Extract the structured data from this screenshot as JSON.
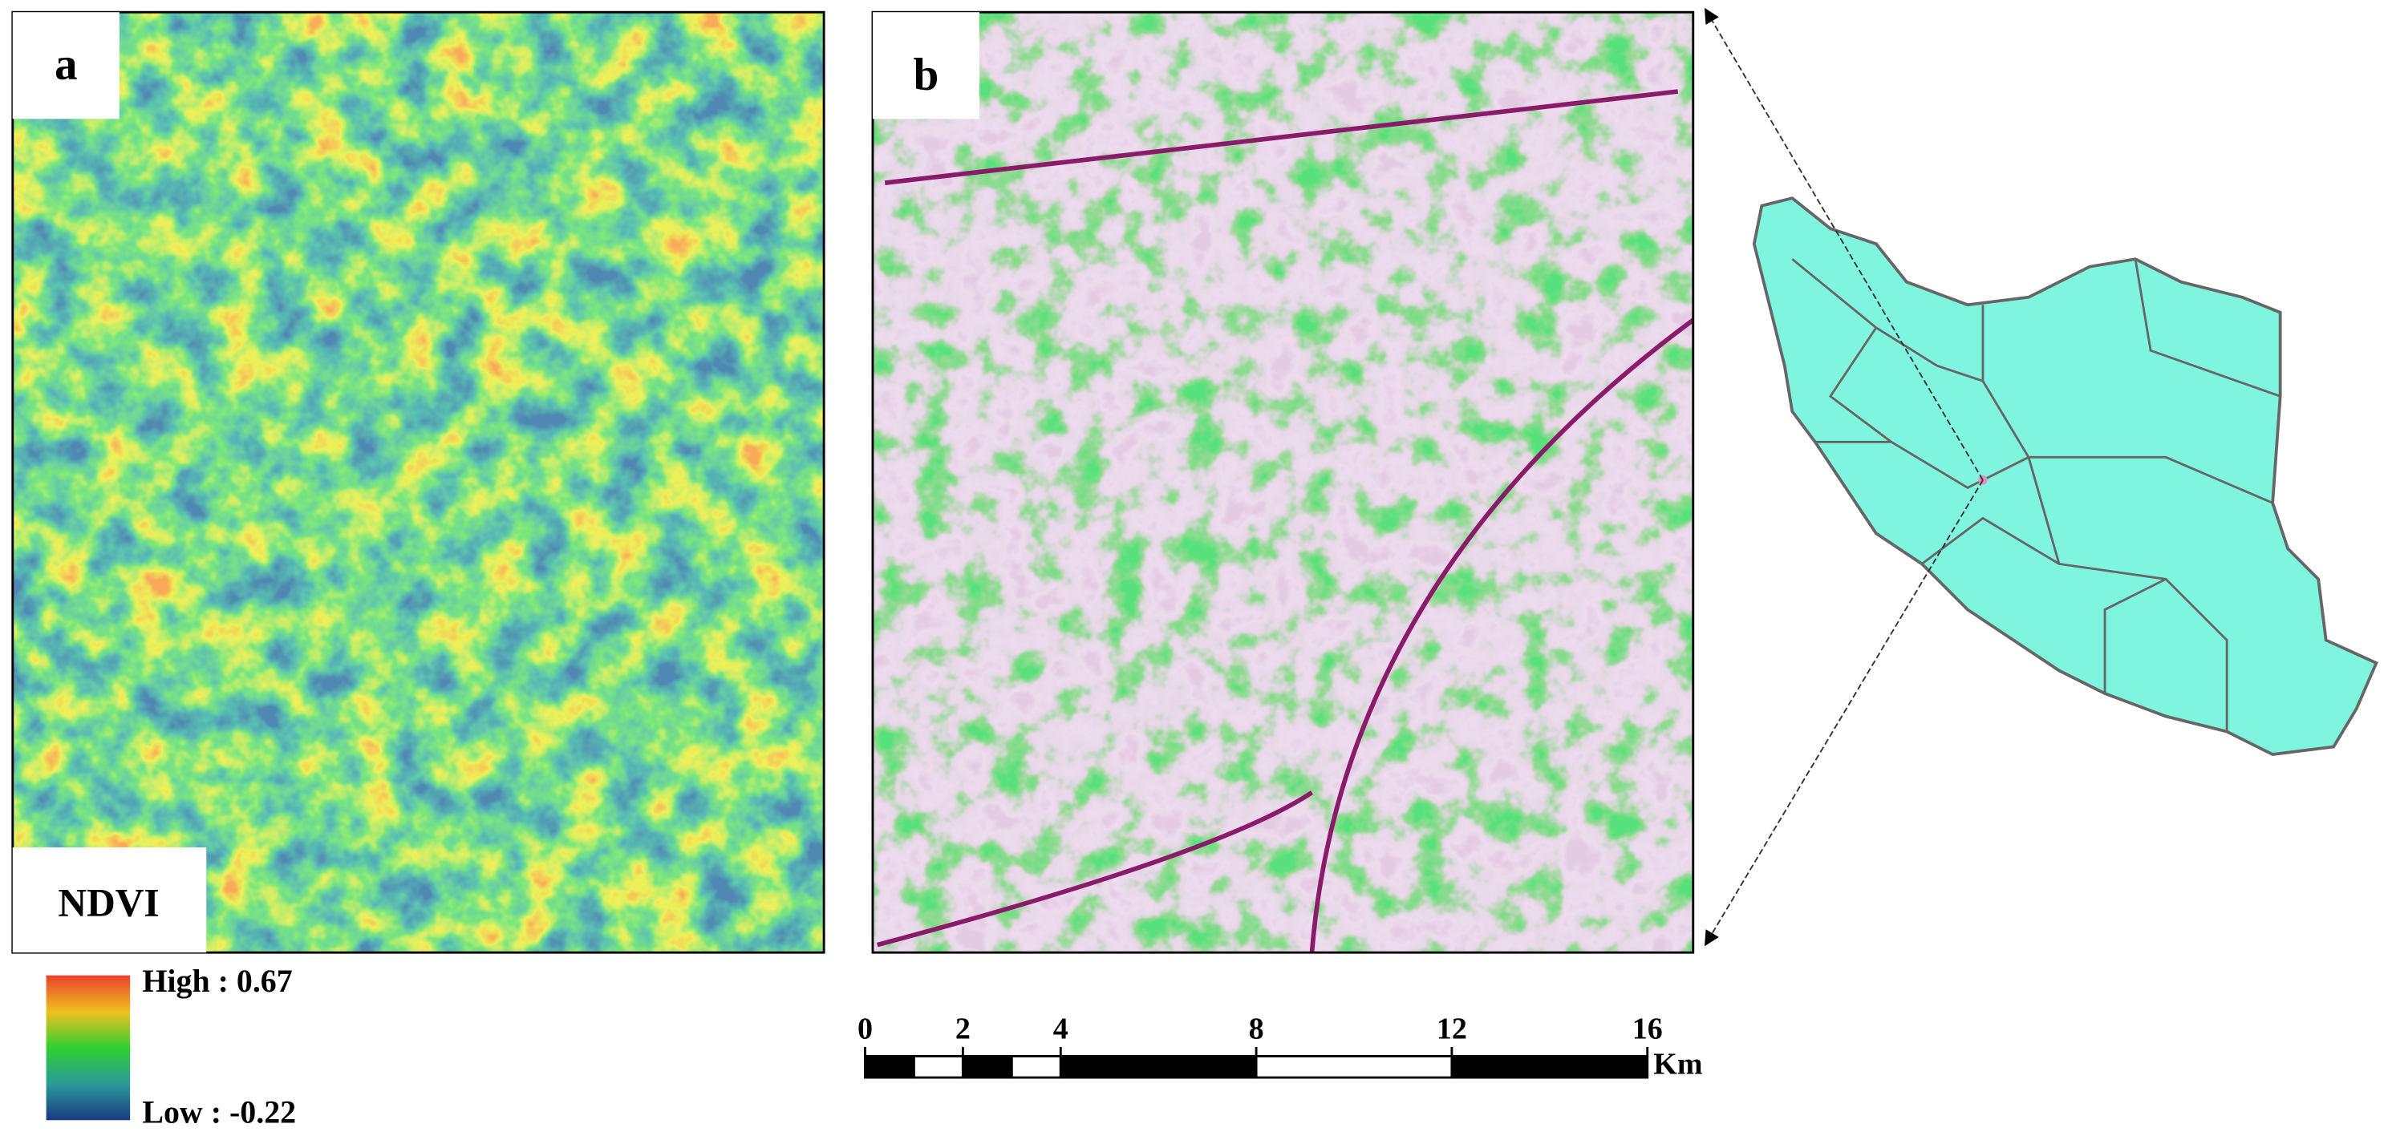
{
  "panels": {
    "a": {
      "label": "a"
    },
    "b": {
      "label": "b"
    }
  },
  "legend": {
    "title": "NDVI",
    "high": "High : 0.67",
    "low": "Low : -0.22"
  },
  "scale_bar": {
    "ticks": [
      0,
      2,
      4,
      8,
      12,
      16
    ],
    "unit": "Km"
  }
}
